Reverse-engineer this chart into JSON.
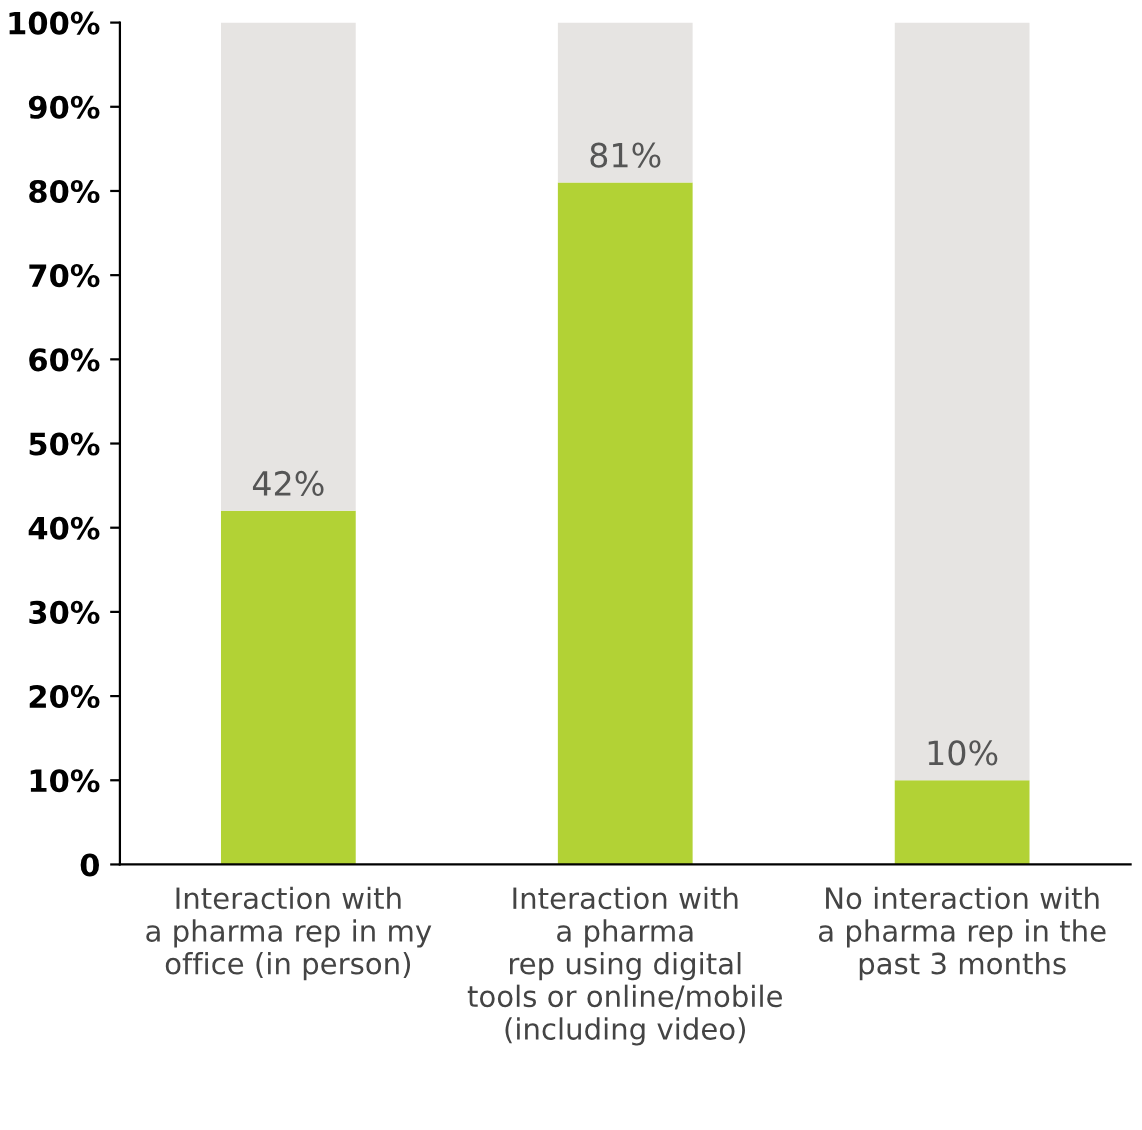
{
  "chart_data": {
    "type": "bar",
    "stacked": true,
    "categories": [
      "Interaction with\na pharma rep in my\noffice (in person)",
      "Interaction with\na pharma\nrep using digital\ntools or online/mobile\n(including video)",
      "No interaction with\na pharma rep in the\npast 3 months"
    ],
    "series": [
      {
        "color": "#b2d235",
        "values": [
          42,
          81,
          10
        ],
        "value_labels": [
          "42%",
          "81%",
          "10%"
        ]
      },
      {
        "color": "#e6e4e2",
        "values": [
          58,
          19,
          90
        ]
      }
    ],
    "ylim": [
      0,
      100
    ],
    "yticks": [
      0,
      {
        "value": 10,
        "label": "10%"
      },
      {
        "value": 20,
        "label": "20%"
      },
      {
        "value": 30,
        "label": "30%"
      },
      {
        "value": 40,
        "label": "40%"
      },
      {
        "value": 50,
        "label": "50%"
      },
      {
        "value": 60,
        "label": "60%"
      },
      {
        "value": 70,
        "label": "70%"
      },
      {
        "value": 80,
        "label": "80%"
      },
      {
        "value": 90,
        "label": "90%"
      },
      {
        "value": 100,
        "label": "100%"
      }
    ],
    "grid": false,
    "legend": false
  }
}
